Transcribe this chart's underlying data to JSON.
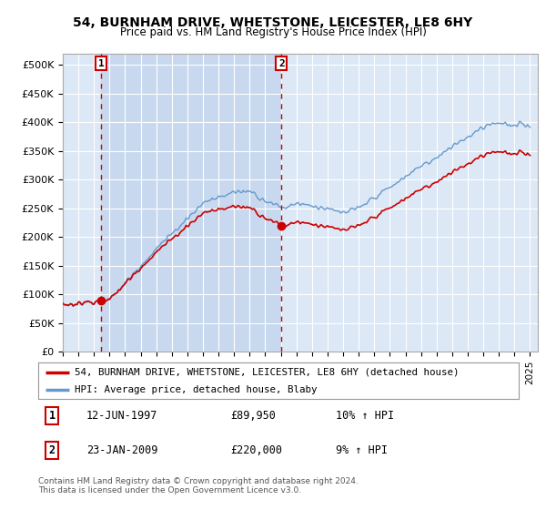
{
  "title": "54, BURNHAM DRIVE, WHETSTONE, LEICESTER, LE8 6HY",
  "subtitle": "Price paid vs. HM Land Registry's House Price Index (HPI)",
  "hpi_label": "HPI: Average price, detached house, Blaby",
  "property_label": "54, BURNHAM DRIVE, WHETSTONE, LEICESTER, LE8 6HY (detached house)",
  "transaction1_date": "12-JUN-1997",
  "transaction1_price": 89950,
  "transaction1_hpi": "10% ↑ HPI",
  "transaction2_date": "23-JAN-2009",
  "transaction2_price": 220000,
  "transaction2_hpi": "9% ↑ HPI",
  "copyright_text": "Contains HM Land Registry data © Crown copyright and database right 2024.\nThis data is licensed under the Open Government Licence v3.0.",
  "plot_bg_color": "#dce8f5",
  "shade_color": "#c8d8ee",
  "hpi_line_color": "#6699cc",
  "property_line_color": "#cc0000",
  "marker_color": "#cc0000",
  "vline_color": "#cc0000",
  "annotation_box_color": "#cc0000",
  "ylim": [
    0,
    520000
  ],
  "yticks": [
    0,
    50000,
    100000,
    150000,
    200000,
    250000,
    300000,
    350000,
    400000,
    450000,
    500000
  ],
  "x_start_year": 1995,
  "x_end_year": 2025
}
